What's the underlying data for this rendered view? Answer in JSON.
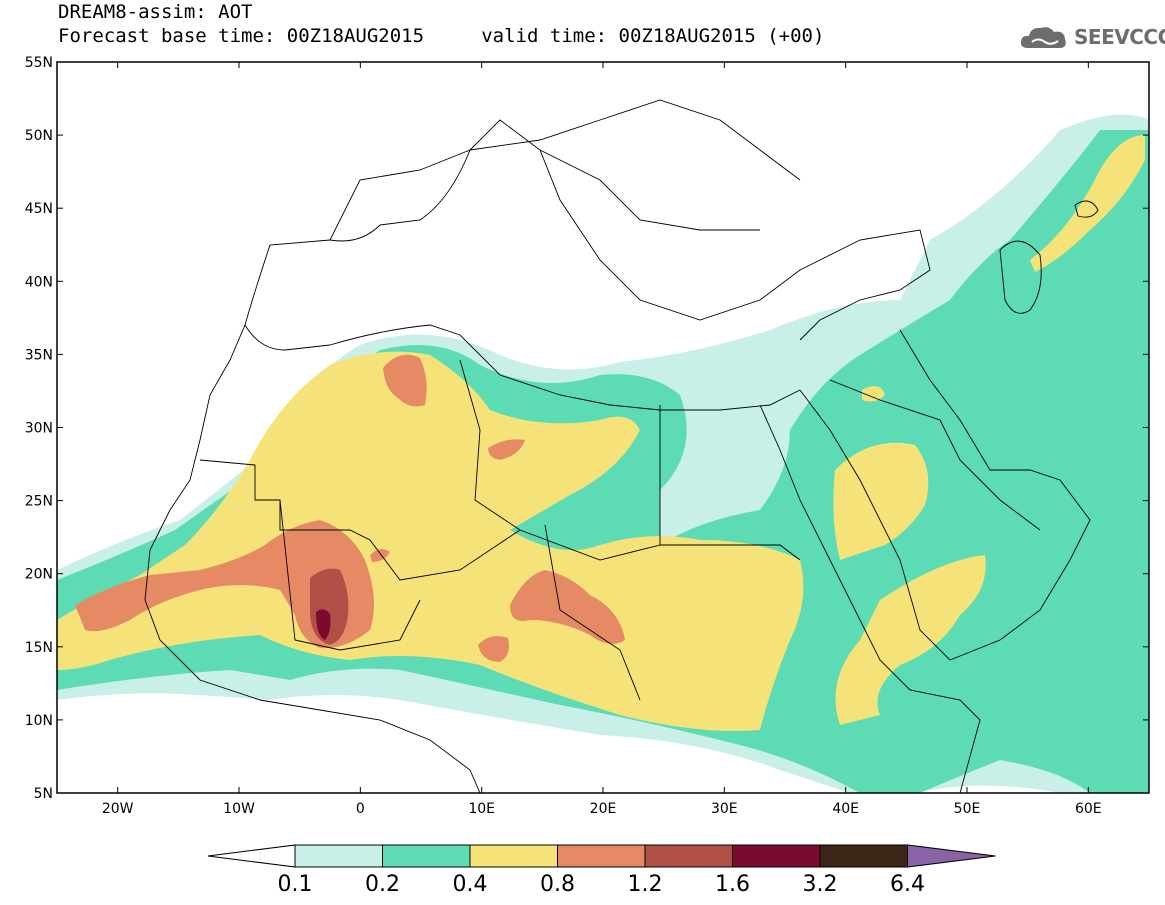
{
  "header": {
    "title_line1": "DREAM8-assim: AOT",
    "title_line2": "Forecast base time: 00Z18AUG2015     valid time: 00Z18AUG2015 (+00)"
  },
  "logo": {
    "text": "SEEVCCC",
    "icon": "cloud-icon",
    "color": "#6d6d6d"
  },
  "map": {
    "lon_range": [
      -25,
      65
    ],
    "lat_range": [
      5,
      55
    ],
    "lat_ticks": [
      "55N",
      "50N",
      "45N",
      "40N",
      "35N",
      "30N",
      "25N",
      "20N",
      "15N",
      "10N",
      "5N"
    ],
    "lon_ticks": [
      "20W",
      "10W",
      "0",
      "10E",
      "20E",
      "30E",
      "40E",
      "50E",
      "60E"
    ],
    "field": "AOT"
  },
  "colorbar": {
    "labels": [
      "0.1",
      "0.2",
      "0.4",
      "0.8",
      "1.2",
      "1.6",
      "3.2",
      "6.4"
    ],
    "colors": [
      "#ffffff",
      "#c8efe8",
      "#5ddbb5",
      "#f5e37a",
      "#e68a66",
      "#b04f45",
      "#7a0a2e",
      "#3b2516",
      "#8a62a8"
    ]
  }
}
